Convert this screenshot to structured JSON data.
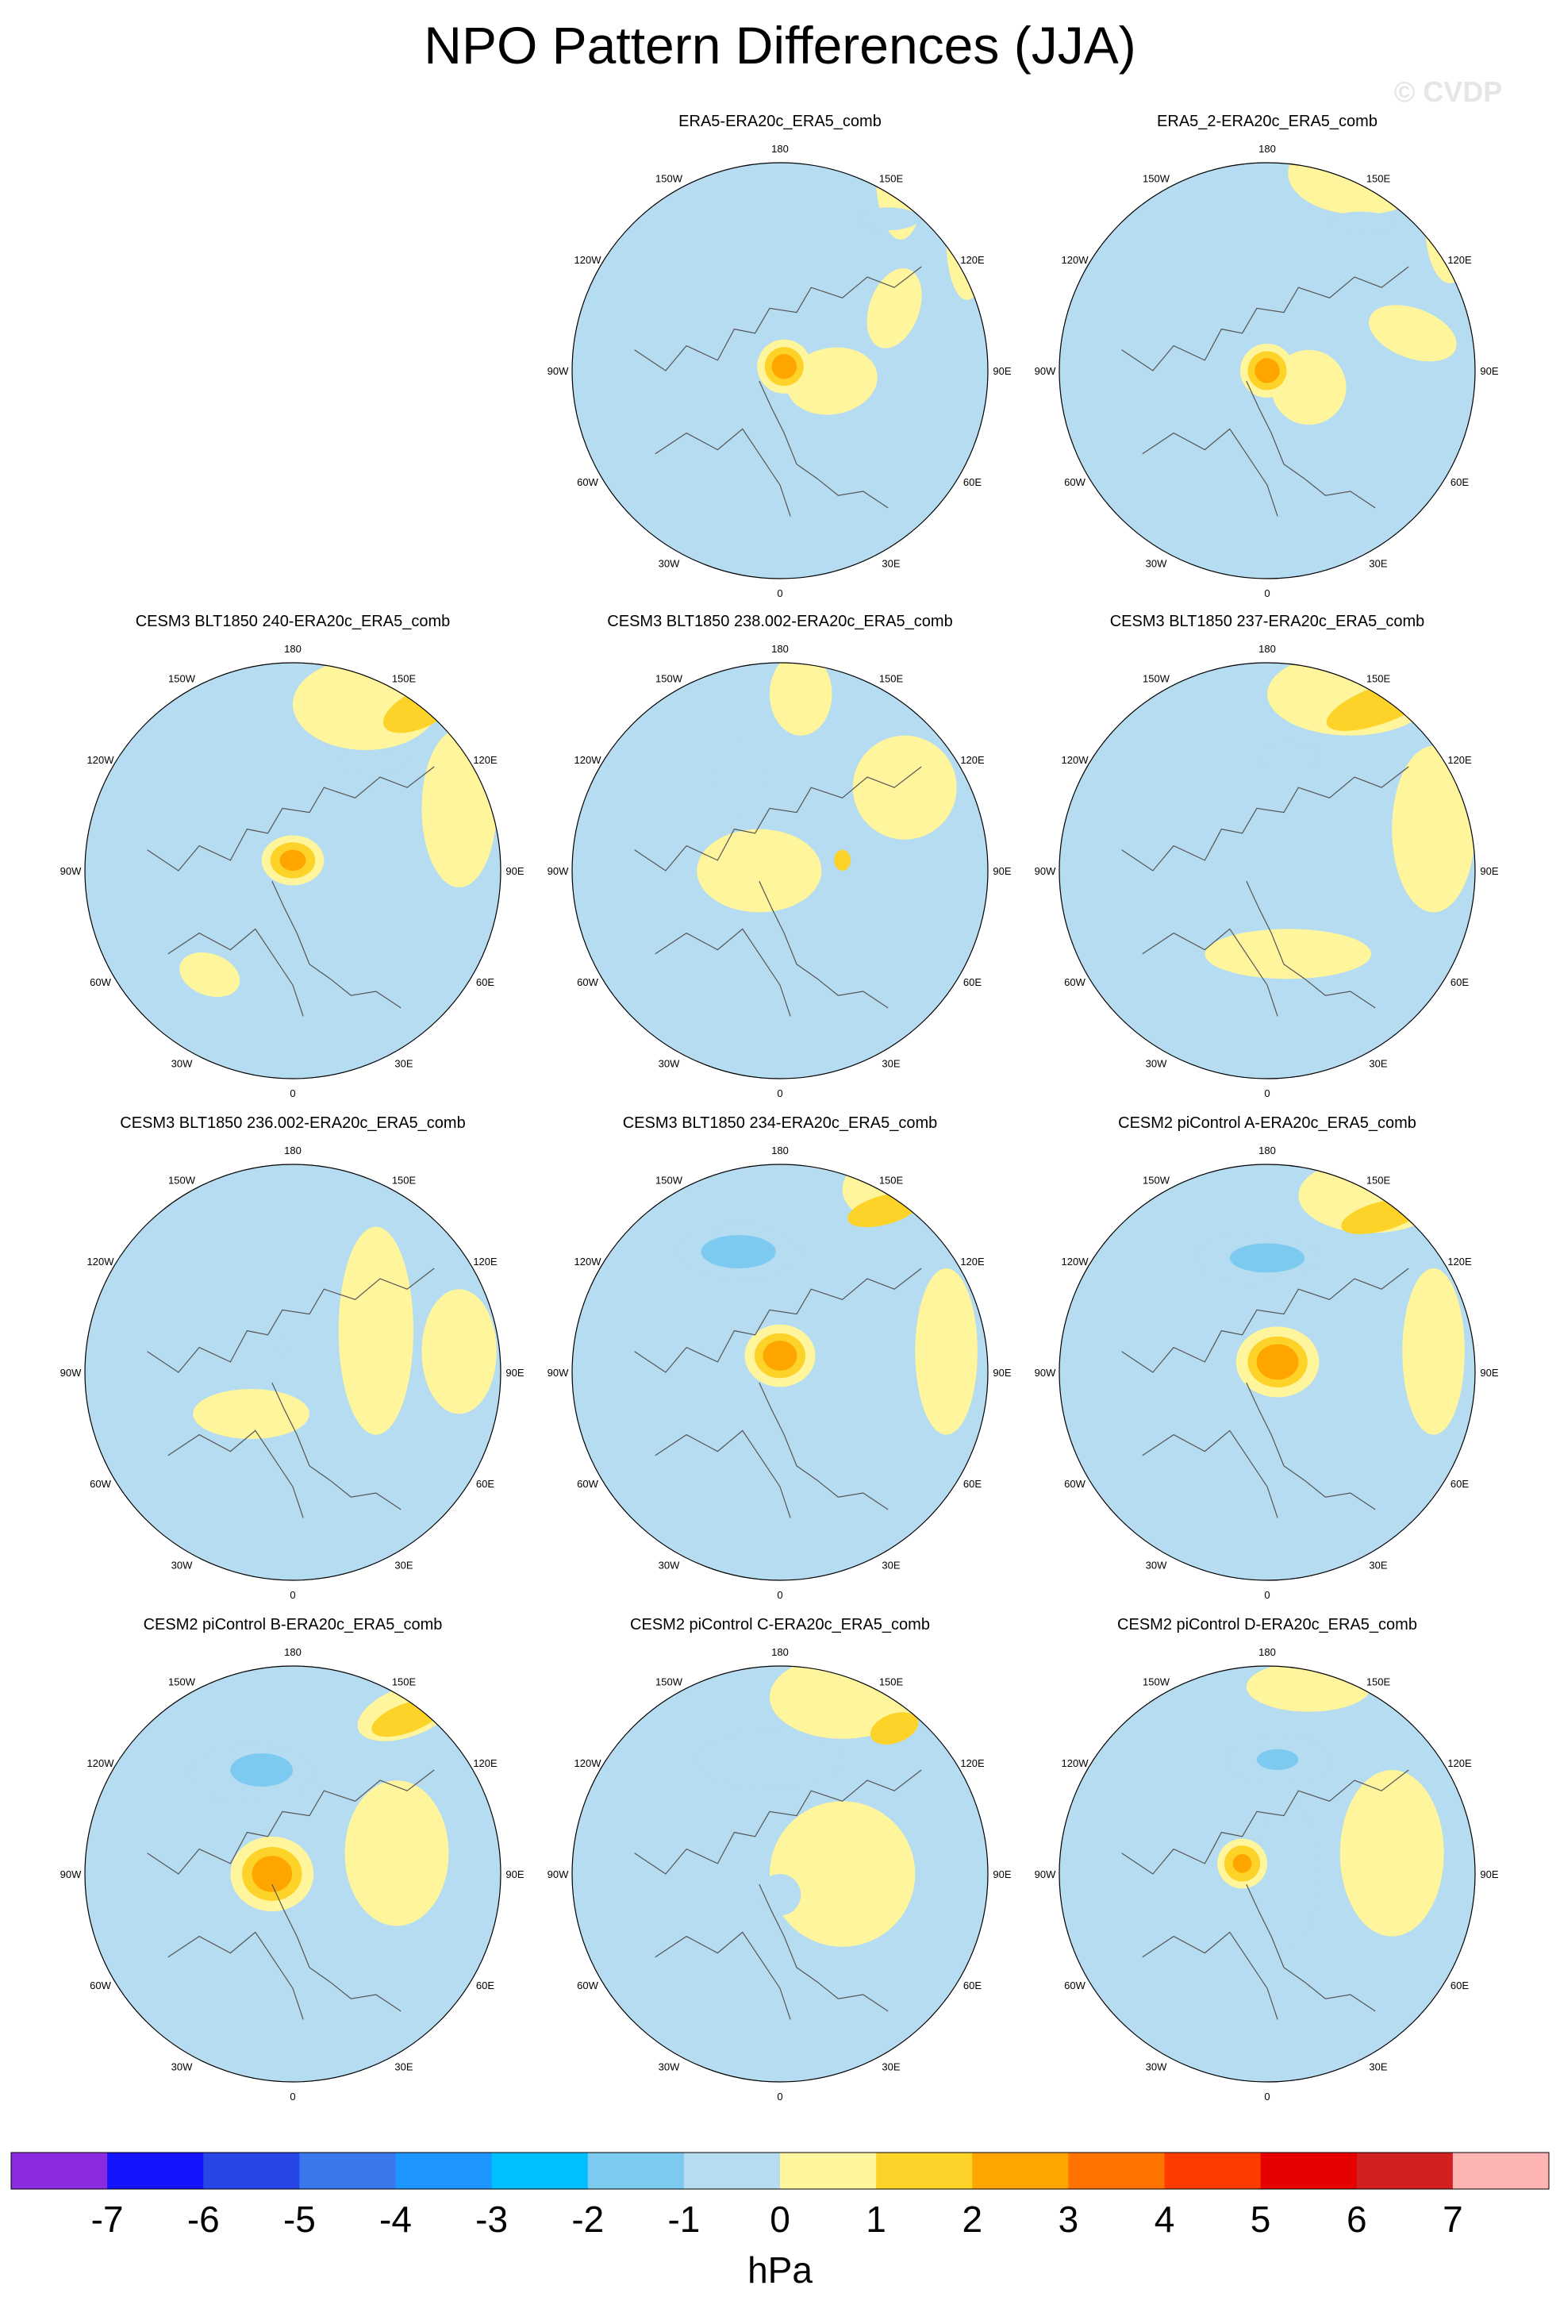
{
  "title": "NPO Pattern Differences (JJA)",
  "watermark": "© CVDP",
  "lon_labels": [
    "180",
    "150E",
    "120E",
    "90E",
    "60E",
    "30E",
    "0",
    "30W",
    "60W",
    "90W",
    "120W",
    "150W"
  ],
  "colorbar": {
    "unit": "hPa",
    "ticks": [
      "-7",
      "-6",
      "-5",
      "-4",
      "-3",
      "-2",
      "-1",
      "0",
      "1",
      "2",
      "3",
      "4",
      "5",
      "6",
      "7"
    ],
    "colors": [
      "#8a2be2",
      "#1414ff",
      "#2846e6",
      "#3a78ee",
      "#1e96ff",
      "#00bfff",
      "#7dcaf0",
      "#b5dcf0",
      "#fff59d",
      "#fdd32a",
      "#ffa500",
      "#ff7300",
      "#ff3c00",
      "#e60000",
      "#d22020",
      "#ffb4b4"
    ]
  },
  "panels": [
    {
      "title": "ERA5-ERA20c_ERA5_comb",
      "features": [
        [
          "pos",
          0.58,
          0.95,
          0.12,
          0.32,
          0
        ],
        [
          "neg",
          0.52,
          0.73,
          0.15,
          0.055,
          0
        ],
        [
          "pos",
          0.9,
          0.62,
          0.1,
          0.28,
          0
        ],
        [
          "pos",
          0.25,
          -0.05,
          0.22,
          0.16,
          -10
        ],
        [
          "pos",
          0.55,
          0.3,
          0.12,
          0.2,
          20
        ]
      ],
      "center": [
        0.02,
        0.02,
        0.13,
        0.13,
        0.5
      ]
    },
    {
      "title": "ERA5_2-ERA20c_ERA5_comb",
      "features": [
        [
          "pos",
          0.45,
          0.95,
          0.35,
          0.2,
          0
        ],
        [
          "neg",
          0.45,
          0.71,
          0.16,
          0.055,
          0
        ],
        [
          "pos",
          0.88,
          0.7,
          0.12,
          0.28,
          0
        ],
        [
          "pos",
          0.7,
          0.18,
          0.22,
          0.12,
          20
        ],
        [
          "pos",
          0.2,
          -0.08,
          0.18,
          0.18,
          0
        ]
      ],
      "center": [
        0.0,
        0.0,
        0.13,
        0.13,
        0.5
      ]
    },
    {
      "title": "CESM3 BLT1850 240-ERA20c_ERA5_comb",
      "features": [
        [
          "pos",
          0.35,
          0.8,
          0.35,
          0.22,
          0
        ],
        [
          "pos2",
          0.62,
          0.78,
          0.2,
          0.09,
          -25
        ],
        [
          "neg",
          0.38,
          0.52,
          0.17,
          0.06,
          0
        ],
        [
          "pos",
          0.8,
          0.3,
          0.18,
          0.38,
          0
        ],
        [
          "pos",
          -0.4,
          -0.5,
          0.15,
          0.1,
          20
        ]
      ],
      "center": [
        0.0,
        0.05,
        0.15,
        0.12,
        0.4
      ]
    },
    {
      "title": "CESM3 BLT1850 238.002-ERA20c_ERA5_comb",
      "features": [
        [
          "pos",
          0.1,
          0.85,
          0.15,
          0.2,
          0
        ],
        [
          "neg",
          -0.2,
          0.45,
          0.12,
          0.18,
          0
        ],
        [
          "pos",
          0.6,
          0.4,
          0.25,
          0.25,
          0
        ],
        [
          "pos",
          -0.1,
          0.0,
          0.3,
          0.2,
          0
        ],
        [
          "pos2",
          0.3,
          0.05,
          0.04,
          0.05,
          0
        ]
      ],
      "center": null
    },
    {
      "title": "CESM3 BLT1850 237-ERA20c_ERA5_comb",
      "features": [
        [
          "pos",
          0.4,
          0.85,
          0.4,
          0.2,
          0
        ],
        [
          "pos2",
          0.55,
          0.8,
          0.28,
          0.09,
          -20
        ],
        [
          "neg",
          0.1,
          0.55,
          0.15,
          0.07,
          0
        ],
        [
          "pos",
          0.8,
          0.2,
          0.2,
          0.4,
          0
        ],
        [
          "pos",
          0.1,
          -0.4,
          0.4,
          0.12,
          0
        ]
      ],
      "center": null
    },
    {
      "title": "CESM3 BLT1850 236.002-ERA20c_ERA5_comb",
      "features": [
        [
          "pos",
          0.4,
          0.2,
          0.18,
          0.5,
          0
        ],
        [
          "pos",
          0.8,
          0.1,
          0.18,
          0.3,
          0
        ],
        [
          "pos",
          -0.2,
          -0.2,
          0.28,
          0.12,
          0
        ],
        [
          "neg",
          -0.05,
          0.12,
          0.04,
          0.05,
          0
        ]
      ],
      "center": null
    },
    {
      "title": "CESM3 BLT1850 234-ERA20c_ERA5_comb",
      "features": [
        [
          "pos",
          0.5,
          0.88,
          0.2,
          0.15,
          0
        ],
        [
          "pos2",
          0.5,
          0.78,
          0.18,
          0.07,
          -15
        ],
        [
          "neg",
          -0.2,
          0.58,
          0.3,
          0.13,
          0
        ],
        [
          "neg2",
          -0.2,
          0.58,
          0.18,
          0.08,
          0
        ],
        [
          "pos",
          0.8,
          0.1,
          0.15,
          0.4,
          0
        ]
      ],
      "center": [
        0.0,
        0.08,
        0.17,
        0.15,
        0.55
      ]
    },
    {
      "title": "CESM2 piControl A-ERA20c_ERA5_comb",
      "features": [
        [
          "pos",
          0.5,
          0.85,
          0.35,
          0.18,
          0
        ],
        [
          "pos2",
          0.55,
          0.75,
          0.2,
          0.07,
          -15
        ],
        [
          "neg",
          -0.05,
          0.55,
          0.3,
          0.12,
          0
        ],
        [
          "neg2",
          0.0,
          0.55,
          0.18,
          0.07,
          0
        ],
        [
          "pos",
          0.8,
          0.1,
          0.15,
          0.4,
          0
        ]
      ],
      "center": [
        0.05,
        0.05,
        0.2,
        0.17,
        0.6
      ]
    },
    {
      "title": "CESM2 piControl B-ERA20c_ERA5_comb",
      "features": [
        [
          "pos",
          0.55,
          0.78,
          0.25,
          0.12,
          -20
        ],
        [
          "pos2",
          0.55,
          0.75,
          0.18,
          0.07,
          -20
        ],
        [
          "neg",
          -0.2,
          0.48,
          0.3,
          0.14,
          0
        ],
        [
          "neg2",
          -0.15,
          0.5,
          0.15,
          0.08,
          0
        ],
        [
          "pos",
          0.5,
          0.1,
          0.25,
          0.35,
          0
        ]
      ],
      "center": [
        -0.1,
        0.0,
        0.2,
        0.18,
        0.55
      ]
    },
    {
      "title": "CESM2 piControl C-ERA20c_ERA5_comb",
      "features": [
        [
          "pos",
          0.3,
          0.85,
          0.35,
          0.2,
          0
        ],
        [
          "pos2",
          0.55,
          0.7,
          0.12,
          0.07,
          -20
        ],
        [
          "neg",
          -0.05,
          0.55,
          0.35,
          0.14,
          0
        ],
        [
          "pos",
          0.3,
          0.0,
          0.35,
          0.35,
          0
        ],
        [
          "neg",
          0.0,
          -0.1,
          0.1,
          0.1,
          0
        ]
      ],
      "center": null
    },
    {
      "title": "CESM2 piControl D-ERA20c_ERA5_comb",
      "features": [
        [
          "pos",
          0.2,
          0.9,
          0.3,
          0.12,
          0
        ],
        [
          "neg",
          0.05,
          0.55,
          0.25,
          0.12,
          0
        ],
        [
          "neg2",
          0.05,
          0.55,
          0.1,
          0.05,
          0
        ],
        [
          "pos",
          0.6,
          0.1,
          0.25,
          0.4,
          0
        ],
        [
          "neg",
          0.1,
          0.0,
          0.15,
          0.35,
          0
        ]
      ],
      "center": [
        -0.12,
        0.05,
        0.12,
        0.12,
        0.3
      ]
    }
  ]
}
